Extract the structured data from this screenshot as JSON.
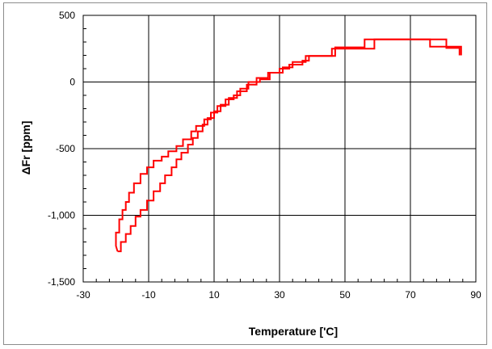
{
  "chart_data": {
    "type": "line",
    "xlabel": "Temperature ['C]",
    "ylabel": "ΔFr [ppm]",
    "xlim": [
      -30,
      90
    ],
    "ylim": [
      -1500,
      500
    ],
    "x_ticks": [
      -30,
      -10,
      10,
      30,
      50,
      70,
      90
    ],
    "x_tick_labels": [
      "-30",
      "-10",
      "10",
      "30",
      "50",
      "70",
      "90"
    ],
    "y_ticks": [
      500,
      0,
      -500,
      -1000,
      -1500
    ],
    "y_tick_labels": [
      "500",
      "0",
      "-500",
      "-1,000",
      "-1,500"
    ],
    "grid": true,
    "legend": "none",
    "series": [
      {
        "color": "#ff0000",
        "points": [
          [
            -19.5,
            -1270
          ],
          [
            -18.5,
            -1270
          ],
          [
            -18.5,
            -1200
          ],
          [
            -17,
            -1200
          ],
          [
            -17,
            -1140
          ],
          [
            -15.5,
            -1140
          ],
          [
            -15.5,
            -1080
          ],
          [
            -14,
            -1080
          ],
          [
            -14,
            -1010
          ],
          [
            -12.5,
            -1010
          ],
          [
            -12.5,
            -960
          ],
          [
            -10.5,
            -960
          ],
          [
            -10.5,
            -890
          ],
          [
            -8.5,
            -890
          ],
          [
            -8.5,
            -820
          ],
          [
            -6.5,
            -820
          ],
          [
            -6.5,
            -760
          ],
          [
            -5,
            -760
          ],
          [
            -5,
            -700
          ],
          [
            -3,
            -700
          ],
          [
            -3,
            -640
          ],
          [
            -1.5,
            -640
          ],
          [
            -1.5,
            -580
          ],
          [
            0,
            -580
          ],
          [
            0,
            -530
          ],
          [
            2,
            -530
          ],
          [
            2,
            -470
          ],
          [
            3.5,
            -470
          ],
          [
            3.5,
            -420
          ],
          [
            5,
            -420
          ],
          [
            5,
            -370
          ],
          [
            6.5,
            -370
          ],
          [
            6.5,
            -320
          ],
          [
            8,
            -320
          ],
          [
            8,
            -270
          ],
          [
            10,
            -270
          ],
          [
            10,
            -220
          ],
          [
            12,
            -220
          ],
          [
            12,
            -170
          ],
          [
            14.5,
            -170
          ],
          [
            14.5,
            -120
          ],
          [
            17,
            -120
          ],
          [
            17,
            -70
          ],
          [
            20,
            -70
          ],
          [
            20,
            -20
          ],
          [
            23,
            -20
          ],
          [
            23,
            30
          ],
          [
            26.5,
            30
          ],
          [
            26.5,
            70
          ],
          [
            30,
            70
          ],
          [
            30,
            100
          ],
          [
            33,
            100
          ],
          [
            33,
            130
          ],
          [
            37,
            130
          ],
          [
            37,
            160
          ],
          [
            39,
            160
          ],
          [
            39,
            195
          ],
          [
            46,
            195
          ],
          [
            46,
            250
          ],
          [
            59,
            250
          ],
          [
            59,
            320
          ],
          [
            81,
            320
          ],
          [
            81,
            255
          ],
          [
            85,
            255
          ],
          [
            85,
            200
          ]
        ]
      },
      {
        "color": "#ff0000",
        "points": [
          [
            85.5,
            200
          ],
          [
            85.5,
            265
          ],
          [
            76,
            265
          ],
          [
            76,
            320
          ],
          [
            56,
            320
          ],
          [
            56,
            260
          ],
          [
            47,
            260
          ],
          [
            47,
            195
          ],
          [
            38,
            195
          ],
          [
            38,
            150
          ],
          [
            34,
            150
          ],
          [
            34,
            110
          ],
          [
            31,
            110
          ],
          [
            31,
            70
          ],
          [
            27,
            70
          ],
          [
            27,
            20
          ],
          [
            24,
            20
          ],
          [
            24,
            0
          ],
          [
            20.5,
            0
          ],
          [
            20.5,
            -50
          ],
          [
            18,
            -50
          ],
          [
            18,
            -100
          ],
          [
            16,
            -100
          ],
          [
            16,
            -130
          ],
          [
            13.5,
            -130
          ],
          [
            13.5,
            -180
          ],
          [
            11,
            -180
          ],
          [
            11,
            -230
          ],
          [
            9,
            -230
          ],
          [
            9,
            -280
          ],
          [
            7,
            -280
          ],
          [
            7,
            -330
          ],
          [
            4.5,
            -330
          ],
          [
            4.5,
            -370
          ],
          [
            3,
            -370
          ],
          [
            3,
            -430
          ],
          [
            0.5,
            -430
          ],
          [
            0.5,
            -480
          ],
          [
            -1.5,
            -480
          ],
          [
            -1.5,
            -520
          ],
          [
            -4,
            -520
          ],
          [
            -4,
            -560
          ],
          [
            -6,
            -560
          ],
          [
            -6,
            -590
          ],
          [
            -8.5,
            -590
          ],
          [
            -8.5,
            -640
          ],
          [
            -10.5,
            -640
          ],
          [
            -10.5,
            -690
          ],
          [
            -12.5,
            -690
          ],
          [
            -12.5,
            -760
          ],
          [
            -14.5,
            -760
          ],
          [
            -14.5,
            -830
          ],
          [
            -16,
            -830
          ],
          [
            -16,
            -900
          ],
          [
            -17,
            -900
          ],
          [
            -17,
            -960
          ],
          [
            -18,
            -960
          ],
          [
            -18,
            -1030
          ],
          [
            -19,
            -1030
          ],
          [
            -19,
            -1130
          ],
          [
            -20,
            -1130
          ],
          [
            -20,
            -1230
          ],
          [
            -19.5,
            -1270
          ]
        ]
      }
    ]
  }
}
